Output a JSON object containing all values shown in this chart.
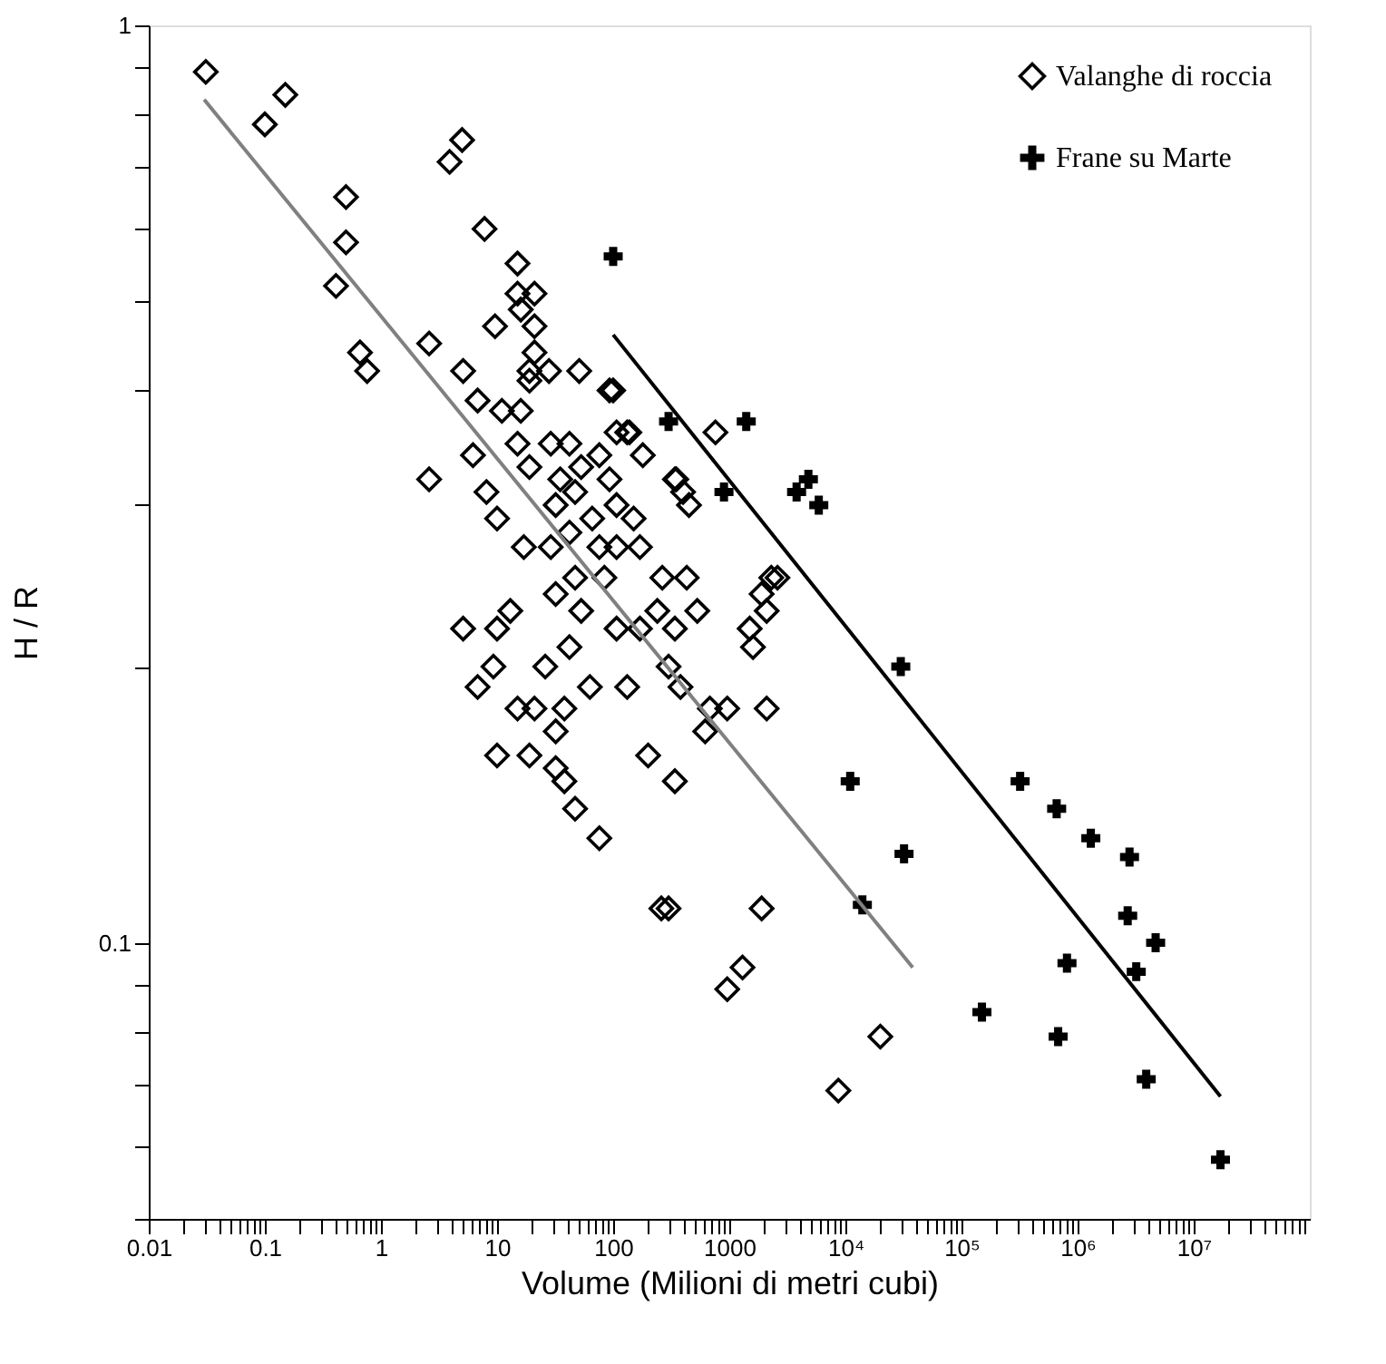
{
  "chart_data": {
    "type": "scatter",
    "xlabel": "Volume (Milioni di metri cubi)",
    "ylabel": "H / R",
    "log": "xy",
    "grid": false,
    "legend": "top right",
    "xlim": [
      0.01,
      100000000
    ],
    "ylim": [
      0.05,
      1
    ],
    "xticks": [
      0.01,
      {
        "value": 0.02,
        "label": null
      },
      {
        "value": 0.03,
        "label": null
      },
      {
        "value": 0.04,
        "label": null
      },
      {
        "value": 0.05,
        "label": null
      },
      {
        "value": 0.06,
        "label": null
      },
      {
        "value": 0.07,
        "label": null
      },
      {
        "value": 0.08,
        "label": null
      },
      {
        "value": 0.09,
        "label": null
      },
      0.1,
      {
        "value": 0.2,
        "label": null
      },
      {
        "value": 0.3,
        "label": null
      },
      {
        "value": 0.4,
        "label": null
      },
      {
        "value": 0.5,
        "label": null
      },
      {
        "value": 0.6,
        "label": null
      },
      {
        "value": 0.7,
        "label": null
      },
      {
        "value": 0.8,
        "label": null
      },
      {
        "value": 0.9,
        "label": null
      },
      1,
      {
        "value": 2,
        "label": null
      },
      {
        "value": 3,
        "label": null
      },
      {
        "value": 4,
        "label": null
      },
      {
        "value": 5,
        "label": null
      },
      {
        "value": 6,
        "label": null
      },
      {
        "value": 7,
        "label": null
      },
      {
        "value": 8,
        "label": null
      },
      {
        "value": 9,
        "label": null
      },
      10,
      {
        "value": 20,
        "label": null
      },
      {
        "value": 30,
        "label": null
      },
      {
        "value": 40,
        "label": null
      },
      {
        "value": 50,
        "label": null
      },
      {
        "value": 60,
        "label": null
      },
      {
        "value": 70,
        "label": null
      },
      {
        "value": 80,
        "label": null
      },
      {
        "value": 90,
        "label": null
      },
      100,
      {
        "value": 200,
        "label": null
      },
      {
        "value": 300,
        "label": null
      },
      {
        "value": 400,
        "label": null
      },
      {
        "value": 500,
        "label": null
      },
      {
        "value": 600,
        "label": null
      },
      {
        "value": 700,
        "label": null
      },
      {
        "value": 800,
        "label": null
      },
      {
        "value": 900,
        "label": null
      },
      1000,
      {
        "value": 2000,
        "label": null
      },
      {
        "value": 3000,
        "label": null
      },
      {
        "value": 4000,
        "label": null
      },
      {
        "value": 5000,
        "label": null
      },
      {
        "value": 6000,
        "label": null
      },
      {
        "value": 7000,
        "label": null
      },
      {
        "value": 8000,
        "label": null
      },
      {
        "value": 9000,
        "label": null
      },
      {
        "value": 10000,
        "label": "10⁴"
      },
      {
        "value": 20000,
        "label": null
      },
      {
        "value": 30000,
        "label": null
      },
      {
        "value": 40000,
        "label": null
      },
      {
        "value": 50000,
        "label": null
      },
      {
        "value": 60000,
        "label": null
      },
      {
        "value": 70000,
        "label": null
      },
      {
        "value": 80000,
        "label": null
      },
      {
        "value": 90000,
        "label": null
      },
      {
        "value": 100000,
        "label": "10⁵"
      },
      {
        "value": 200000,
        "label": null
      },
      {
        "value": 300000,
        "label": null
      },
      {
        "value": 400000,
        "label": null
      },
      {
        "value": 500000,
        "label": null
      },
      {
        "value": 600000,
        "label": null
      },
      {
        "value": 700000,
        "label": null
      },
      {
        "value": 800000,
        "label": null
      },
      {
        "value": 900000,
        "label": null
      },
      {
        "value": 1000000,
        "label": "10⁶"
      },
      {
        "value": 2000000,
        "label": null
      },
      {
        "value": 3000000,
        "label": null
      },
      {
        "value": 4000000,
        "label": null
      },
      {
        "value": 5000000,
        "label": null
      },
      {
        "value": 6000000,
        "label": null
      },
      {
        "value": 7000000,
        "label": null
      },
      {
        "value": 8000000,
        "label": null
      },
      {
        "value": 9000000,
        "label": null
      },
      {
        "value": 10000000,
        "label": "10⁷"
      },
      {
        "value": 20000000,
        "label": null
      },
      {
        "value": 30000000,
        "label": null
      },
      {
        "value": 40000000,
        "label": null
      },
      {
        "value": 50000000,
        "label": null
      },
      {
        "value": 60000000,
        "label": null
      },
      {
        "value": 70000000,
        "label": null
      },
      {
        "value": 80000000,
        "label": null
      },
      {
        "value": 90000000,
        "label": null
      }
    ],
    "yticks": [
      {
        "value": 0.05,
        "label": null
      },
      {
        "value": 0.06,
        "label": null
      },
      {
        "value": 0.07,
        "label": null
      },
      {
        "value": 0.08,
        "label": null
      },
      {
        "value": 0.09,
        "label": null
      },
      0.1,
      {
        "value": 0.2,
        "label": null
      },
      {
        "value": 0.3,
        "label": null
      },
      {
        "value": 0.4,
        "label": null
      },
      {
        "value": 0.5,
        "label": null
      },
      {
        "value": 0.6,
        "label": null
      },
      {
        "value": 0.7,
        "label": null
      },
      {
        "value": 0.8,
        "label": null
      },
      {
        "value": 0.9,
        "label": null
      },
      1
    ],
    "series": [
      {
        "name": "Valanghe di roccia",
        "marker": "diamond",
        "color": "#000000",
        "x": [
          0.031,
          0.1,
          0.15,
          0.5,
          0.5,
          0.41,
          0.66,
          0.76,
          2.6,
          2.6,
          3.9,
          5.0,
          7.8,
          15,
          15,
          21,
          16,
          9.6,
          21,
          5.1,
          21,
          19,
          28,
          51,
          93,
          6.8,
          11,
          16,
          19,
          6.2,
          8.1,
          10,
          15,
          19,
          29,
          42,
          53,
          76,
          107,
          132,
          180,
          340,
          400,
          35,
          32,
          47,
          93,
          66,
          107,
          150,
          17,
          29,
          42,
          76,
          107,
          170,
          47,
          32,
          53,
          84,
          2300,
          1900,
          1500,
          265,
          430,
          530,
          240,
          170,
          340,
          107,
          42,
          26,
          13,
          10,
          5.1,
          9.3,
          6.8,
          15,
          21,
          38,
          32,
          63,
          132,
          380,
          300,
          680,
          960,
          620,
          2100,
          10,
          19,
          32,
          38,
          47,
          76,
          200,
          340,
          260,
          300,
          1900,
          1300,
          960,
          20000,
          8700,
          100,
          760,
          138,
          350,
          450,
          2100,
          2600,
          1600
        ],
        "values": [
          0.89,
          0.78,
          0.84,
          0.65,
          0.58,
          0.52,
          0.44,
          0.42,
          0.45,
          0.32,
          0.71,
          0.75,
          0.6,
          0.55,
          0.51,
          0.51,
          0.49,
          0.47,
          0.47,
          0.42,
          0.44,
          0.42,
          0.42,
          0.42,
          0.4,
          0.39,
          0.38,
          0.38,
          0.41,
          0.34,
          0.31,
          0.29,
          0.35,
          0.33,
          0.35,
          0.35,
          0.33,
          0.34,
          0.36,
          0.36,
          0.34,
          0.32,
          0.31,
          0.32,
          0.3,
          0.31,
          0.32,
          0.29,
          0.3,
          0.29,
          0.27,
          0.27,
          0.28,
          0.27,
          0.27,
          0.27,
          0.25,
          0.24,
          0.23,
          0.25,
          0.25,
          0.24,
          0.22,
          0.25,
          0.25,
          0.23,
          0.23,
          0.22,
          0.22,
          0.22,
          0.21,
          0.2,
          0.23,
          0.22,
          0.22,
          0.2,
          0.19,
          0.18,
          0.18,
          0.18,
          0.17,
          0.19,
          0.19,
          0.19,
          0.2,
          0.18,
          0.18,
          0.17,
          0.18,
          0.16,
          0.16,
          0.155,
          0.15,
          0.14,
          0.13,
          0.16,
          0.15,
          0.109,
          0.109,
          0.109,
          0.094,
          0.089,
          0.079,
          0.069,
          0.4,
          0.36,
          0.36,
          0.32,
          0.3,
          0.23,
          0.25,
          0.21
        ]
      },
      {
        "name": "Frane su Marte",
        "marker": "cross",
        "color": "#000000",
        "x": [
          100,
          300,
          1400,
          900,
          4800,
          3800,
          5900,
          30000,
          11000,
          32000,
          14000,
          320000,
          660000,
          1300000,
          2800000,
          2700000,
          4700000,
          3200000,
          810000,
          150000,
          680000,
          3900000,
          17000000
        ],
        "values": [
          0.56,
          0.37,
          0.37,
          0.31,
          0.32,
          0.31,
          0.3,
          0.2,
          0.15,
          0.125,
          0.11,
          0.15,
          0.14,
          0.13,
          0.124,
          0.107,
          0.1,
          0.093,
          0.095,
          0.084,
          0.079,
          0.071,
          0.058
        ]
      },
      {
        "type": "line",
        "line_style": "solid",
        "color": "#808080",
        "x": [
          0.03,
          38000
        ],
        "values": [
          0.83,
          0.094
        ]
      },
      {
        "type": "line",
        "line_style": "solid",
        "color": "#000000",
        "x": [
          100,
          17000000
        ],
        "values": [
          0.46,
          0.068
        ]
      }
    ]
  }
}
